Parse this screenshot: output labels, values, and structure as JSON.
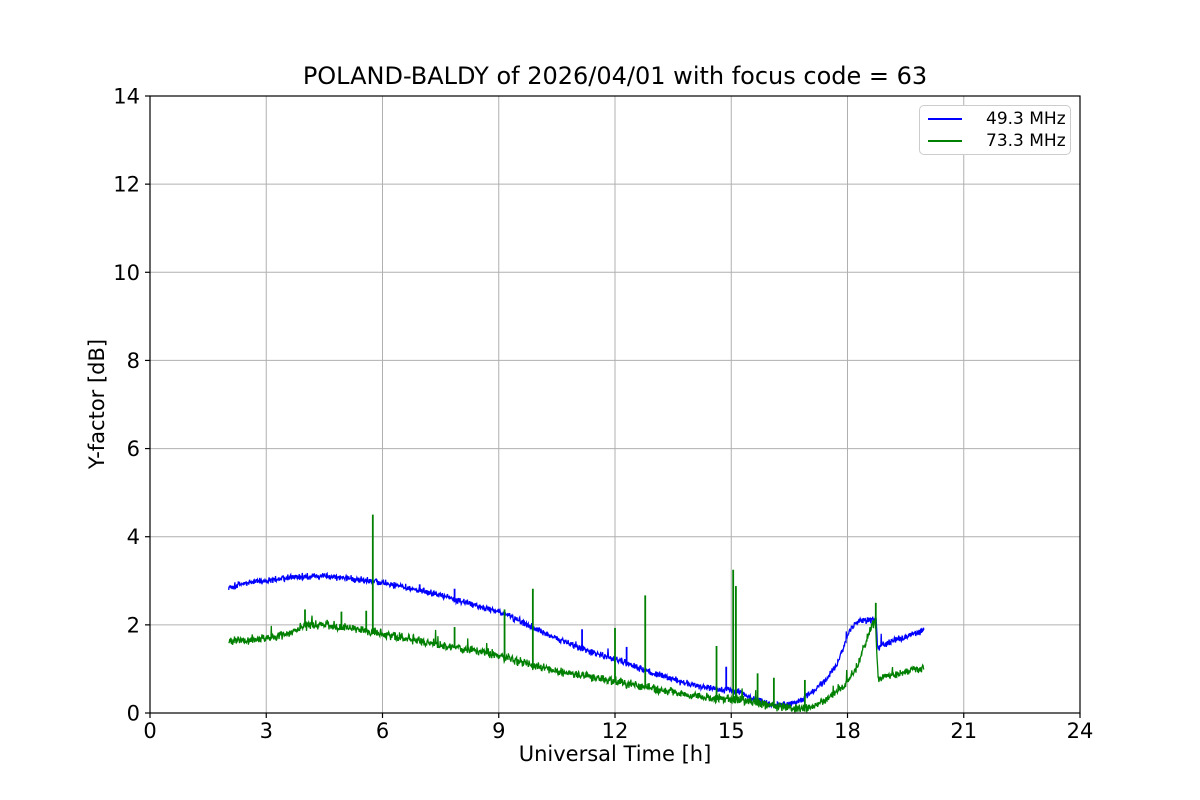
{
  "chart_data": {
    "type": "line",
    "title": "POLAND-BALDY of 2026/04/01 with focus code = 63",
    "xlabel": "Universal Time [h]",
    "ylabel": "Y-factor [dB]",
    "xlim": [
      0,
      24
    ],
    "ylim": [
      0,
      14
    ],
    "xticks": [
      0,
      3,
      6,
      9,
      12,
      15,
      18,
      21,
      24
    ],
    "yticks": [
      0,
      2,
      4,
      6,
      8,
      10,
      12,
      14
    ],
    "grid": true,
    "grid_color": "#b0b0b0",
    "background": "#ffffff",
    "legend_position": "upper right",
    "x_unit": "hours UT",
    "y_unit": "dB",
    "series": [
      {
        "name": "49.3 MHz",
        "color": "#0000ff",
        "noise": 0.09,
        "spike_chance": 0.006,
        "spike_gain": 0.2,
        "seed": 1337,
        "envelope": [
          [
            2.03,
            2.85
          ],
          [
            2.3,
            2.92
          ],
          [
            2.6,
            2.97
          ],
          [
            3.0,
            3.0
          ],
          [
            3.4,
            3.05
          ],
          [
            3.8,
            3.08
          ],
          [
            4.2,
            3.1
          ],
          [
            4.6,
            3.1
          ],
          [
            5.0,
            3.07
          ],
          [
            5.4,
            3.03
          ],
          [
            5.8,
            2.98
          ],
          [
            6.2,
            2.92
          ],
          [
            6.6,
            2.86
          ],
          [
            7.0,
            2.78
          ],
          [
            7.4,
            2.7
          ],
          [
            7.8,
            2.6
          ],
          [
            8.2,
            2.5
          ],
          [
            8.6,
            2.4
          ],
          [
            9.0,
            2.3
          ],
          [
            9.4,
            2.15
          ],
          [
            9.8,
            1.98
          ],
          [
            10.2,
            1.82
          ],
          [
            10.6,
            1.66
          ],
          [
            11.0,
            1.52
          ],
          [
            11.4,
            1.38
          ],
          [
            11.8,
            1.27
          ],
          [
            12.2,
            1.17
          ],
          [
            12.6,
            1.03
          ],
          [
            13.0,
            0.9
          ],
          [
            13.4,
            0.8
          ],
          [
            13.8,
            0.68
          ],
          [
            14.2,
            0.6
          ],
          [
            14.6,
            0.55
          ],
          [
            15.0,
            0.52
          ],
          [
            15.3,
            0.45
          ],
          [
            15.6,
            0.32
          ],
          [
            15.9,
            0.22
          ],
          [
            16.2,
            0.18
          ],
          [
            16.5,
            0.2
          ],
          [
            16.8,
            0.3
          ],
          [
            17.1,
            0.48
          ],
          [
            17.4,
            0.7
          ],
          [
            17.7,
            1.05
          ],
          [
            17.9,
            1.5
          ],
          [
            18.05,
            1.85
          ],
          [
            18.2,
            2.05
          ],
          [
            18.4,
            2.1
          ],
          [
            18.6,
            2.11
          ],
          [
            18.74,
            2.12
          ],
          [
            18.78,
            1.48
          ],
          [
            19.0,
            1.58
          ],
          [
            19.3,
            1.68
          ],
          [
            19.6,
            1.76
          ],
          [
            19.98,
            1.88
          ]
        ],
        "spikes": [
          [
            6.96,
            2.92
          ],
          [
            7.86,
            2.82
          ],
          [
            11.15,
            1.9
          ],
          [
            12.3,
            1.5
          ],
          [
            14.87,
            1.05
          ]
        ]
      },
      {
        "name": "73.3 MHz",
        "color": "#008000",
        "noise": 0.12,
        "spike_chance": 0.008,
        "spike_gain": 0.3,
        "seed": 777,
        "envelope": [
          [
            2.03,
            1.62
          ],
          [
            2.4,
            1.66
          ],
          [
            2.8,
            1.68
          ],
          [
            3.2,
            1.72
          ],
          [
            3.6,
            1.78
          ],
          [
            3.9,
            1.95
          ],
          [
            4.2,
            2.0
          ],
          [
            4.5,
            2.0
          ],
          [
            4.8,
            1.97
          ],
          [
            5.2,
            1.93
          ],
          [
            5.6,
            1.87
          ],
          [
            6.0,
            1.8
          ],
          [
            6.4,
            1.73
          ],
          [
            6.8,
            1.66
          ],
          [
            7.2,
            1.6
          ],
          [
            7.6,
            1.53
          ],
          [
            8.0,
            1.46
          ],
          [
            8.4,
            1.4
          ],
          [
            8.8,
            1.34
          ],
          [
            9.2,
            1.26
          ],
          [
            9.6,
            1.15
          ],
          [
            10.0,
            1.05
          ],
          [
            10.4,
            0.97
          ],
          [
            10.8,
            0.9
          ],
          [
            11.2,
            0.84
          ],
          [
            11.6,
            0.78
          ],
          [
            12.0,
            0.73
          ],
          [
            12.4,
            0.65
          ],
          [
            12.8,
            0.58
          ],
          [
            13.2,
            0.52
          ],
          [
            13.6,
            0.46
          ],
          [
            14.0,
            0.4
          ],
          [
            14.4,
            0.35
          ],
          [
            14.8,
            0.32
          ],
          [
            15.2,
            0.3
          ],
          [
            15.6,
            0.25
          ],
          [
            16.0,
            0.17
          ],
          [
            16.4,
            0.12
          ],
          [
            16.8,
            0.1
          ],
          [
            17.1,
            0.14
          ],
          [
            17.4,
            0.25
          ],
          [
            17.7,
            0.45
          ],
          [
            17.95,
            0.65
          ],
          [
            18.1,
            0.85
          ],
          [
            18.25,
            1.05
          ],
          [
            18.4,
            1.45
          ],
          [
            18.55,
            1.8
          ],
          [
            18.65,
            2.0
          ],
          [
            18.72,
            2.15
          ],
          [
            18.76,
            1.2
          ],
          [
            18.8,
            0.75
          ],
          [
            19.0,
            0.85
          ],
          [
            19.3,
            0.9
          ],
          [
            19.6,
            0.95
          ],
          [
            19.98,
            1.05
          ]
        ],
        "spikes": [
          [
            4.0,
            2.35
          ],
          [
            4.94,
            2.3
          ],
          [
            5.58,
            2.32
          ],
          [
            5.75,
            4.5
          ],
          [
            7.86,
            1.95
          ],
          [
            9.15,
            2.35
          ],
          [
            9.88,
            2.82
          ],
          [
            12.0,
            1.93
          ],
          [
            12.78,
            2.67
          ],
          [
            14.62,
            1.52
          ],
          [
            15.05,
            3.25
          ],
          [
            15.12,
            2.88
          ],
          [
            15.68,
            0.9
          ],
          [
            16.1,
            0.8
          ],
          [
            16.9,
            0.75
          ],
          [
            18.73,
            2.5
          ]
        ]
      }
    ]
  },
  "legend": {
    "entries": [
      "49.3 MHz",
      "73.3 MHz"
    ]
  }
}
